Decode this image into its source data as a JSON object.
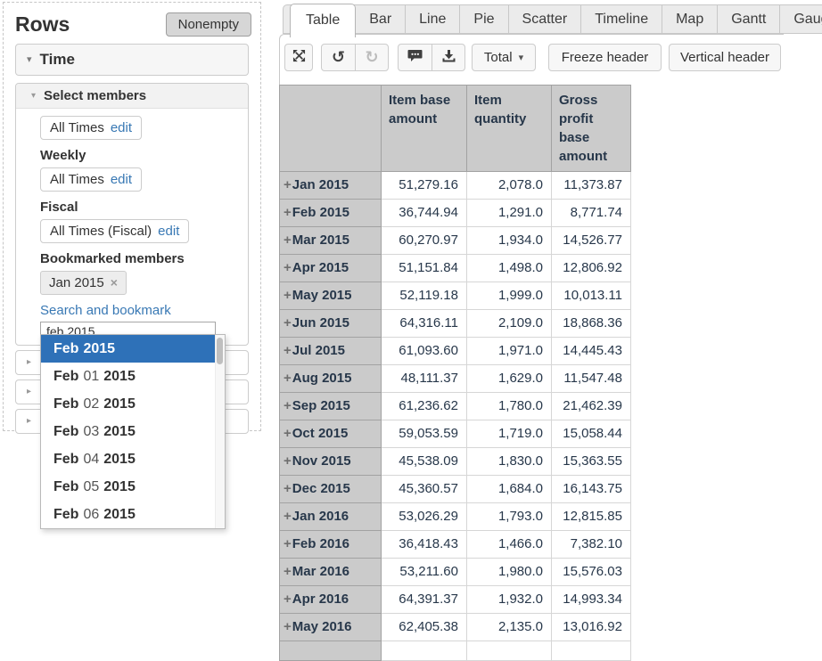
{
  "left_panel": {
    "title": "Rows",
    "nonempty_button": "Nonempty",
    "time_section_label": "Time",
    "select_members_label": "Select members",
    "members": {
      "default": {
        "name": "All Times",
        "action": "edit"
      },
      "weekly_label": "Weekly",
      "weekly": {
        "name": "All Times",
        "action": "edit"
      },
      "fiscal_label": "Fiscal",
      "fiscal": {
        "name": "All Times (Fiscal)",
        "action": "edit"
      }
    },
    "bookmarked_members_label": "Bookmarked members",
    "bookmarked_tag": "Jan 2015",
    "search_link": "Search and bookmark",
    "search_input_value": "feb 2015",
    "collapsed_sections": 3,
    "dropdown": {
      "items": [
        {
          "parts": [
            "Feb",
            "",
            "2015"
          ],
          "selected": true
        },
        {
          "parts": [
            "Feb",
            "01",
            "2015"
          ],
          "selected": false
        },
        {
          "parts": [
            "Feb",
            "02",
            "2015"
          ],
          "selected": false
        },
        {
          "parts": [
            "Feb",
            "03",
            "2015"
          ],
          "selected": false
        },
        {
          "parts": [
            "Feb",
            "04",
            "2015"
          ],
          "selected": false
        },
        {
          "parts": [
            "Feb",
            "05",
            "2015"
          ],
          "selected": false
        },
        {
          "parts": [
            "Feb",
            "06",
            "2015"
          ],
          "selected": false
        }
      ]
    }
  },
  "tabs": [
    {
      "label": "Table",
      "active": true
    },
    {
      "label": "Bar",
      "active": false
    },
    {
      "label": "Line",
      "active": false
    },
    {
      "label": "Pie",
      "active": false
    },
    {
      "label": "Scatter",
      "active": false
    },
    {
      "label": "Timeline",
      "active": false
    },
    {
      "label": "Map",
      "active": false
    },
    {
      "label": "Gantt",
      "active": false
    },
    {
      "label": "Gauge",
      "active": false
    }
  ],
  "toolbar": {
    "icons": [
      "fullscreen",
      "undo",
      "redo",
      "comment",
      "download"
    ],
    "total_button": "Total",
    "freeze_header_button": "Freeze header",
    "vertical_header_button": "Vertical header"
  },
  "table": {
    "columns": [
      "Item base amount",
      "Item quantity",
      "Gross profit base amount"
    ],
    "rows": [
      {
        "label": "Jan 2015",
        "values": [
          "51,279.16",
          "2,078.0",
          "11,373.87"
        ]
      },
      {
        "label": "Feb 2015",
        "values": [
          "36,744.94",
          "1,291.0",
          "8,771.74"
        ]
      },
      {
        "label": "Mar 2015",
        "values": [
          "60,270.97",
          "1,934.0",
          "14,526.77"
        ]
      },
      {
        "label": "Apr 2015",
        "values": [
          "51,151.84",
          "1,498.0",
          "12,806.92"
        ]
      },
      {
        "label": "May 2015",
        "values": [
          "52,119.18",
          "1,999.0",
          "10,013.11"
        ]
      },
      {
        "label": "Jun 2015",
        "values": [
          "64,316.11",
          "2,109.0",
          "18,868.36"
        ]
      },
      {
        "label": "Jul 2015",
        "values": [
          "61,093.60",
          "1,971.0",
          "14,445.43"
        ]
      },
      {
        "label": "Aug 2015",
        "values": [
          "48,111.37",
          "1,629.0",
          "11,547.48"
        ]
      },
      {
        "label": "Sep 2015",
        "values": [
          "61,236.62",
          "1,780.0",
          "21,462.39"
        ]
      },
      {
        "label": "Oct 2015",
        "values": [
          "59,053.59",
          "1,719.0",
          "15,058.44"
        ]
      },
      {
        "label": "Nov 2015",
        "values": [
          "45,538.09",
          "1,830.0",
          "15,363.55"
        ]
      },
      {
        "label": "Dec 2015",
        "values": [
          "45,360.57",
          "1,684.0",
          "16,143.75"
        ]
      },
      {
        "label": "Jan 2016",
        "values": [
          "53,026.29",
          "1,793.0",
          "12,815.85"
        ]
      },
      {
        "label": "Feb 2016",
        "values": [
          "36,418.43",
          "1,466.0",
          "7,382.10"
        ]
      },
      {
        "label": "Mar 2016",
        "values": [
          "53,211.60",
          "1,980.0",
          "15,576.03"
        ]
      },
      {
        "label": "Apr 2016",
        "values": [
          "64,391.37",
          "1,932.0",
          "14,993.34"
        ]
      },
      {
        "label": "May 2016",
        "values": [
          "62,405.38",
          "2,135.0",
          "13,016.92"
        ]
      }
    ]
  },
  "colors": {
    "selection_blue": "#2e71b8",
    "link_blue": "#3878b4",
    "grid_header_gray": "#cbcbcb"
  }
}
